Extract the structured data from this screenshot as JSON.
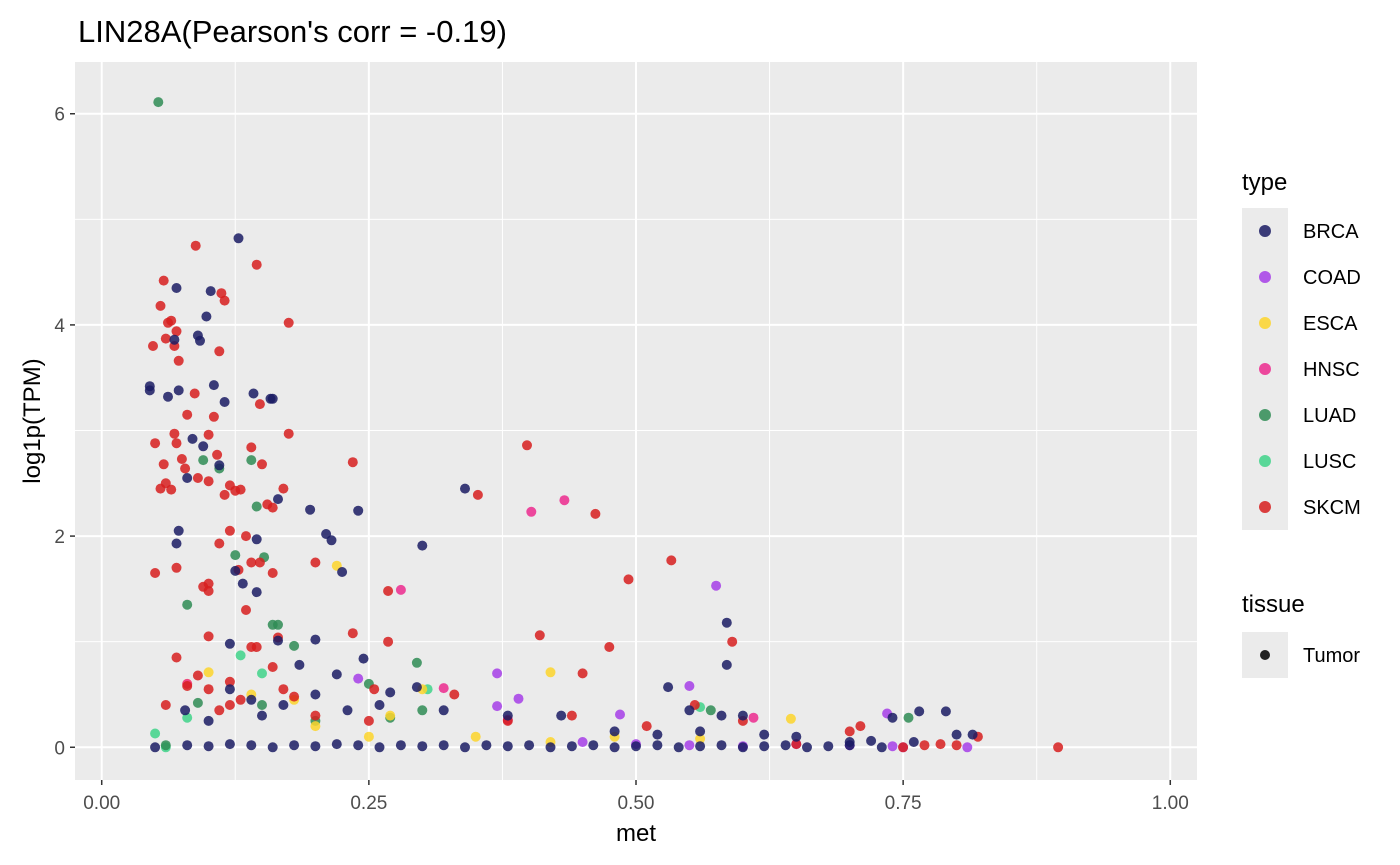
{
  "chart_data": {
    "type": "scatter",
    "title": "LIN28A(Pearson's corr = -0.19)",
    "xlabel": "met",
    "ylabel": "log1p(TPM)",
    "xlim": [
      -0.025,
      1.025
    ],
    "ylim": [
      -0.31,
      6.49
    ],
    "xticks": [
      0.0,
      0.25,
      0.5,
      0.75,
      1.0
    ],
    "xtick_labels": [
      "0.00",
      "0.25",
      "0.50",
      "0.75",
      "1.00"
    ],
    "yticks": [
      0,
      2,
      4,
      6
    ],
    "ytick_labels": [
      "0",
      "2",
      "4",
      "6"
    ],
    "grid": true,
    "legend_position": "right",
    "legends": [
      {
        "title": "type",
        "entries": [
          {
            "label": "BRCA",
            "color": "#1b1c64"
          },
          {
            "label": "COAD",
            "color": "#a63ee8"
          },
          {
            "label": "ESCA",
            "color": "#fdd52b"
          },
          {
            "label": "HNSC",
            "color": "#ec2a8e"
          },
          {
            "label": "LUAD",
            "color": "#2f8c55"
          },
          {
            "label": "LUSC",
            "color": "#3fd48a"
          },
          {
            "label": "SKCM",
            "color": "#d71e1e"
          }
        ]
      },
      {
        "title": "tissue",
        "entries": [
          {
            "label": "Tumor",
            "color": "#222222"
          }
        ]
      }
    ],
    "series": [
      {
        "name": "BRCA",
        "points": [
          [
            0.045,
            3.42
          ],
          [
            0.045,
            3.38
          ],
          [
            0.062,
            3.32
          ],
          [
            0.068,
            3.86
          ],
          [
            0.07,
            4.35
          ],
          [
            0.072,
            3.38
          ],
          [
            0.078,
            0.35
          ],
          [
            0.085,
            2.92
          ],
          [
            0.09,
            3.9
          ],
          [
            0.092,
            3.85
          ],
          [
            0.095,
            2.85
          ],
          [
            0.098,
            4.08
          ],
          [
            0.102,
            4.32
          ],
          [
            0.105,
            3.43
          ],
          [
            0.11,
            2.67
          ],
          [
            0.115,
            3.27
          ],
          [
            0.128,
            4.82
          ],
          [
            0.142,
            3.35
          ],
          [
            0.145,
            1.97
          ],
          [
            0.158,
            3.3
          ],
          [
            0.16,
            3.3
          ],
          [
            0.165,
            2.35
          ],
          [
            0.07,
            1.93
          ],
          [
            0.072,
            2.05
          ],
          [
            0.08,
            2.55
          ],
          [
            0.12,
            0.98
          ],
          [
            0.125,
            1.67
          ],
          [
            0.132,
            1.55
          ],
          [
            0.145,
            1.47
          ],
          [
            0.165,
            1.01
          ],
          [
            0.195,
            2.25
          ],
          [
            0.21,
            2.02
          ],
          [
            0.215,
            1.96
          ],
          [
            0.225,
            1.66
          ],
          [
            0.24,
            2.24
          ],
          [
            0.245,
            0.84
          ],
          [
            0.2,
            1.02
          ],
          [
            0.185,
            0.78
          ],
          [
            0.22,
            0.69
          ],
          [
            0.3,
            1.91
          ],
          [
            0.34,
            2.45
          ],
          [
            0.295,
            0.57
          ],
          [
            0.27,
            0.52
          ],
          [
            0.53,
            0.57
          ],
          [
            0.585,
            1.18
          ],
          [
            0.585,
            0.78
          ],
          [
            0.58,
            0.3
          ],
          [
            0.6,
            0.3
          ],
          [
            0.55,
            0.35
          ],
          [
            0.74,
            0.28
          ],
          [
            0.765,
            0.34
          ],
          [
            0.79,
            0.34
          ],
          [
            0.8,
            0.12
          ],
          [
            0.815,
            0.12
          ],
          [
            0.12,
            0.55
          ],
          [
            0.14,
            0.45
          ],
          [
            0.1,
            0.25
          ],
          [
            0.15,
            0.3
          ],
          [
            0.17,
            0.4
          ],
          [
            0.2,
            0.5
          ],
          [
            0.23,
            0.35
          ],
          [
            0.26,
            0.4
          ],
          [
            0.32,
            0.35
          ],
          [
            0.38,
            0.3
          ],
          [
            0.43,
            0.3
          ],
          [
            0.48,
            0.15
          ],
          [
            0.52,
            0.12
          ],
          [
            0.56,
            0.15
          ],
          [
            0.62,
            0.12
          ],
          [
            0.65,
            0.1
          ],
          [
            0.7,
            0.05
          ],
          [
            0.72,
            0.06
          ],
          [
            0.76,
            0.05
          ],
          [
            0.05,
            0.0
          ],
          [
            0.08,
            0.02
          ],
          [
            0.1,
            0.01
          ],
          [
            0.12,
            0.03
          ],
          [
            0.14,
            0.02
          ],
          [
            0.16,
            0.0
          ],
          [
            0.18,
            0.02
          ],
          [
            0.2,
            0.01
          ],
          [
            0.22,
            0.03
          ],
          [
            0.24,
            0.02
          ],
          [
            0.26,
            0.0
          ],
          [
            0.28,
            0.02
          ],
          [
            0.3,
            0.01
          ],
          [
            0.32,
            0.02
          ],
          [
            0.34,
            0.0
          ],
          [
            0.36,
            0.02
          ],
          [
            0.38,
            0.01
          ],
          [
            0.4,
            0.02
          ],
          [
            0.42,
            0.0
          ],
          [
            0.44,
            0.01
          ],
          [
            0.46,
            0.02
          ],
          [
            0.48,
            0.0
          ],
          [
            0.5,
            0.01
          ],
          [
            0.52,
            0.02
          ],
          [
            0.54,
            0.0
          ],
          [
            0.56,
            0.01
          ],
          [
            0.58,
            0.02
          ],
          [
            0.6,
            0.0
          ],
          [
            0.62,
            0.01
          ],
          [
            0.64,
            0.02
          ],
          [
            0.66,
            0.0
          ],
          [
            0.68,
            0.01
          ],
          [
            0.7,
            0.02
          ],
          [
            0.73,
            0.0
          ]
        ]
      },
      {
        "name": "COAD",
        "points": [
          [
            0.575,
            1.53
          ],
          [
            0.37,
            0.7
          ],
          [
            0.39,
            0.46
          ],
          [
            0.37,
            0.39
          ],
          [
            0.485,
            0.31
          ],
          [
            0.55,
            0.58
          ],
          [
            0.735,
            0.32
          ],
          [
            0.24,
            0.65
          ],
          [
            0.45,
            0.05
          ],
          [
            0.5,
            0.03
          ],
          [
            0.55,
            0.02
          ],
          [
            0.6,
            0.01
          ],
          [
            0.65,
            0.03
          ],
          [
            0.7,
            0.02
          ],
          [
            0.74,
            0.01
          ],
          [
            0.81,
            0.0
          ],
          [
            0.75,
            0.0
          ]
        ]
      },
      {
        "name": "ESCA",
        "points": [
          [
            0.22,
            1.72
          ],
          [
            0.3,
            0.55
          ],
          [
            0.42,
            0.71
          ],
          [
            0.1,
            0.71
          ],
          [
            0.14,
            0.5
          ],
          [
            0.18,
            0.45
          ],
          [
            0.645,
            0.27
          ],
          [
            0.2,
            0.2
          ],
          [
            0.27,
            0.3
          ],
          [
            0.35,
            0.1
          ],
          [
            0.42,
            0.05
          ],
          [
            0.48,
            0.1
          ],
          [
            0.56,
            0.08
          ],
          [
            0.08,
            0.6
          ],
          [
            0.25,
            0.1
          ]
        ]
      },
      {
        "name": "HNSC",
        "points": [
          [
            0.402,
            2.23
          ],
          [
            0.433,
            2.34
          ],
          [
            0.28,
            1.49
          ],
          [
            0.32,
            0.56
          ],
          [
            0.38,
            0.26
          ],
          [
            0.61,
            0.28
          ],
          [
            0.08,
            0.6
          ]
        ]
      },
      {
        "name": "LUAD",
        "points": [
          [
            0.053,
            6.11
          ],
          [
            0.08,
            1.35
          ],
          [
            0.095,
            2.72
          ],
          [
            0.11,
            2.64
          ],
          [
            0.125,
            1.82
          ],
          [
            0.14,
            2.72
          ],
          [
            0.145,
            2.28
          ],
          [
            0.152,
            1.8
          ],
          [
            0.16,
            1.16
          ],
          [
            0.165,
            1.16
          ],
          [
            0.18,
            0.96
          ],
          [
            0.295,
            0.8
          ],
          [
            0.3,
            0.35
          ],
          [
            0.25,
            0.6
          ],
          [
            0.27,
            0.28
          ],
          [
            0.2,
            0.25
          ],
          [
            0.15,
            0.4
          ],
          [
            0.09,
            0.42
          ],
          [
            0.57,
            0.35
          ],
          [
            0.755,
            0.28
          ],
          [
            0.06,
            0.02
          ]
        ]
      },
      {
        "name": "LUSC",
        "points": [
          [
            0.13,
            0.87
          ],
          [
            0.15,
            0.7
          ],
          [
            0.08,
            0.28
          ],
          [
            0.05,
            0.13
          ],
          [
            0.305,
            0.55
          ],
          [
            0.56,
            0.38
          ],
          [
            0.06,
            0.0
          ]
        ]
      },
      {
        "name": "SKCM",
        "points": [
          [
            0.088,
            4.75
          ],
          [
            0.058,
            4.42
          ],
          [
            0.048,
            3.8
          ],
          [
            0.055,
            4.18
          ],
          [
            0.06,
            3.87
          ],
          [
            0.062,
            4.02
          ],
          [
            0.065,
            4.04
          ],
          [
            0.068,
            3.8
          ],
          [
            0.07,
            3.94
          ],
          [
            0.072,
            3.66
          ],
          [
            0.08,
            3.15
          ],
          [
            0.087,
            3.35
          ],
          [
            0.1,
            2.96
          ],
          [
            0.11,
            3.75
          ],
          [
            0.112,
            4.3
          ],
          [
            0.115,
            4.23
          ],
          [
            0.145,
            4.57
          ],
          [
            0.175,
            4.02
          ],
          [
            0.148,
            3.25
          ],
          [
            0.05,
            2.88
          ],
          [
            0.055,
            2.45
          ],
          [
            0.06,
            2.5
          ],
          [
            0.058,
            2.68
          ],
          [
            0.065,
            2.44
          ],
          [
            0.068,
            2.97
          ],
          [
            0.07,
            2.88
          ],
          [
            0.075,
            2.73
          ],
          [
            0.078,
            2.64
          ],
          [
            0.09,
            2.55
          ],
          [
            0.1,
            2.52
          ],
          [
            0.105,
            3.13
          ],
          [
            0.108,
            2.77
          ],
          [
            0.115,
            2.39
          ],
          [
            0.12,
            2.48
          ],
          [
            0.125,
            2.43
          ],
          [
            0.13,
            2.44
          ],
          [
            0.14,
            2.84
          ],
          [
            0.15,
            2.68
          ],
          [
            0.155,
            2.3
          ],
          [
            0.16,
            2.27
          ],
          [
            0.17,
            2.45
          ],
          [
            0.175,
            2.97
          ],
          [
            0.05,
            1.65
          ],
          [
            0.07,
            1.7
          ],
          [
            0.095,
            1.52
          ],
          [
            0.1,
            1.55
          ],
          [
            0.1,
            1.48
          ],
          [
            0.11,
            1.93
          ],
          [
            0.12,
            2.05
          ],
          [
            0.128,
            1.68
          ],
          [
            0.135,
            1.3
          ],
          [
            0.14,
            1.75
          ],
          [
            0.148,
            1.75
          ],
          [
            0.16,
            1.65
          ],
          [
            0.135,
            2.0
          ],
          [
            0.2,
            1.75
          ],
          [
            0.235,
            2.7
          ],
          [
            0.268,
            1.48
          ],
          [
            0.268,
            1.0
          ],
          [
            0.235,
            1.08
          ],
          [
            0.255,
            0.55
          ],
          [
            0.398,
            2.86
          ],
          [
            0.352,
            2.39
          ],
          [
            0.41,
            1.06
          ],
          [
            0.462,
            2.21
          ],
          [
            0.493,
            1.59
          ],
          [
            0.533,
            1.77
          ],
          [
            0.475,
            0.95
          ],
          [
            0.45,
            0.7
          ],
          [
            0.59,
            1.0
          ],
          [
            0.555,
            0.4
          ],
          [
            0.33,
            0.5
          ],
          [
            0.07,
            0.85
          ],
          [
            0.08,
            0.58
          ],
          [
            0.09,
            0.68
          ],
          [
            0.1,
            0.55
          ],
          [
            0.1,
            1.05
          ],
          [
            0.12,
            0.62
          ],
          [
            0.14,
            0.95
          ],
          [
            0.145,
            0.95
          ],
          [
            0.16,
            0.76
          ],
          [
            0.165,
            1.04
          ],
          [
            0.17,
            0.55
          ],
          [
            0.18,
            0.48
          ],
          [
            0.06,
            0.4
          ],
          [
            0.11,
            0.35
          ],
          [
            0.12,
            0.4
          ],
          [
            0.13,
            0.45
          ],
          [
            0.2,
            0.3
          ],
          [
            0.25,
            0.25
          ],
          [
            0.38,
            0.25
          ],
          [
            0.44,
            0.3
          ],
          [
            0.51,
            0.2
          ],
          [
            0.6,
            0.25
          ],
          [
            0.7,
            0.15
          ],
          [
            0.71,
            0.2
          ],
          [
            0.75,
            0.0
          ],
          [
            0.77,
            0.02
          ],
          [
            0.785,
            0.03
          ],
          [
            0.8,
            0.02
          ],
          [
            0.82,
            0.1
          ],
          [
            0.895,
            0.0
          ],
          [
            0.65,
            0.03
          ]
        ]
      }
    ]
  }
}
